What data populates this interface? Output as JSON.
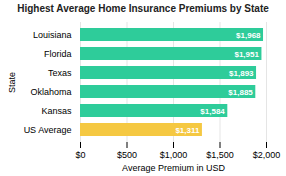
{
  "chart_data": {
    "type": "bar",
    "orientation": "horizontal",
    "title": "Highest Average Home Insurance Premiums by State",
    "xlabel": "Average Premium in USD",
    "ylabel": "State",
    "categories": [
      "Louisiana",
      "Florida",
      "Texas",
      "Oklahoma",
      "Kansas",
      "US Average"
    ],
    "values": [
      1968,
      1951,
      1893,
      1885,
      1584,
      1311
    ],
    "value_labels": [
      "$1,968",
      "$1,951",
      "$1,893",
      "$1,885",
      "$1,584",
      "$1,311"
    ],
    "data_labels": true,
    "colors": [
      "#2ecc9a",
      "#2ecc9a",
      "#2ecc9a",
      "#2ecc9a",
      "#2ecc9a",
      "#f5c842"
    ],
    "xlim": [
      0,
      2000
    ],
    "xticks": [
      {
        "value": 0,
        "label": "$0"
      },
      {
        "value": 500,
        "label": "$500"
      },
      {
        "value": 1000,
        "label": "$1,000"
      },
      {
        "value": 1500,
        "label": "$1,500"
      },
      {
        "value": 2000,
        "label": "$2,000"
      }
    ],
    "grid": true
  }
}
